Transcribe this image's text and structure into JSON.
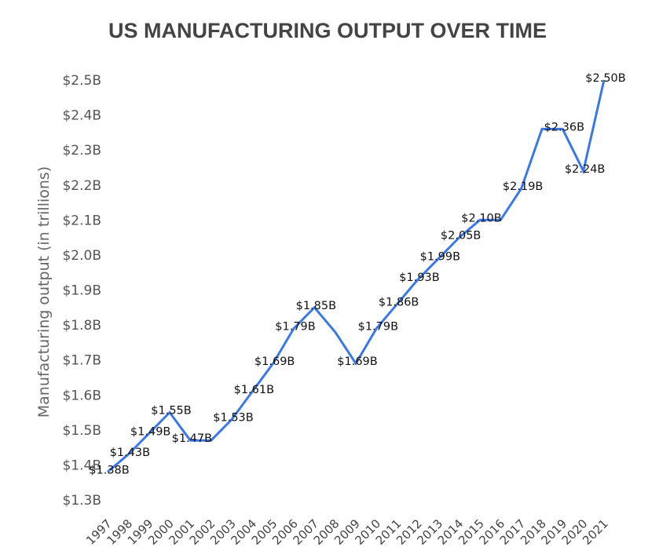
{
  "chart_data": {
    "type": "line",
    "title": "US MANUFACTURING OUTPUT OVER TIME",
    "xlabel": "",
    "ylabel": "Manufacturing output (in trillions)",
    "x": [
      "1997",
      "1998",
      "1999",
      "2000",
      "2001",
      "2002",
      "2003",
      "2004",
      "2005",
      "2006",
      "2007",
      "2008",
      "2009",
      "2010",
      "2011",
      "2012",
      "2013",
      "2014",
      "2015",
      "2016",
      "2017",
      "2018",
      "2019",
      "2020",
      "2021"
    ],
    "series": [
      {
        "name": "Manufacturing output",
        "color": "#3B78E7",
        "values": [
          1.38,
          1.43,
          1.49,
          1.55,
          1.47,
          1.47,
          1.53,
          1.61,
          1.69,
          1.79,
          1.85,
          1.78,
          1.69,
          1.79,
          1.86,
          1.93,
          1.99,
          2.05,
          2.1,
          2.1,
          2.19,
          2.36,
          2.36,
          2.24,
          2.5
        ],
        "data_labels": [
          "$1.38B",
          "$1.43B",
          "$1.49B",
          "$1.55B",
          "$1.47B",
          "",
          "$1.53B",
          "$1.61B",
          "$1.69B",
          "$1.79B",
          "$1.85B",
          "",
          "$1.69B",
          "$1.79B",
          "$1.86B",
          "$1.93B",
          "$1.99B",
          "$2.05B",
          "$2.10B",
          "",
          "$2.19B",
          "",
          "$2.36B",
          "$2.24B",
          "$2.50B"
        ]
      }
    ],
    "ylim": [
      1.3,
      2.5
    ],
    "yticks": [
      2.5,
      2.4,
      2.3,
      2.2,
      2.1,
      2.0,
      1.9,
      1.8,
      1.7,
      1.6,
      1.5,
      1.4,
      1.3
    ],
    "ytick_labels": [
      "$2.5B",
      "$2.4B",
      "$2.3B",
      "$2.2B",
      "$2.1B",
      "$2.0B",
      "$1.9B",
      "$1.8B",
      "$1.7B",
      "$1.6B",
      "$1.5B",
      "$1.4B",
      "$1.3B"
    ],
    "grid": false,
    "legend": "none"
  }
}
